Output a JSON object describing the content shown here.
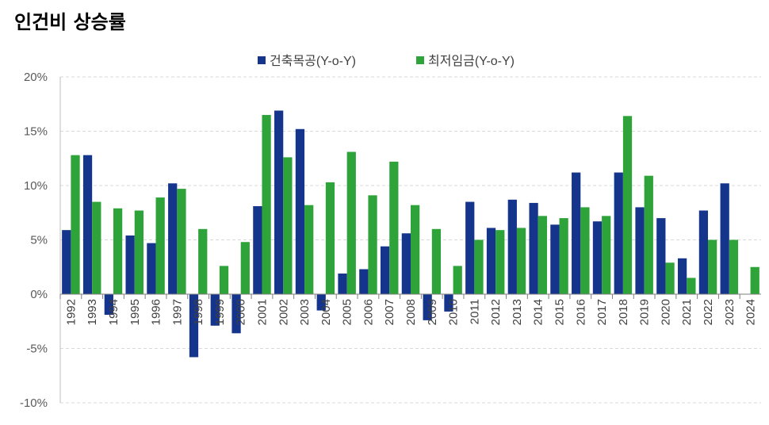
{
  "title": "인건비 상승률",
  "chart_data": {
    "type": "bar",
    "title": "인건비 상승률",
    "xlabel": "",
    "ylabel": "",
    "ylim": [
      -10,
      20
    ],
    "yticks": [
      -10,
      -5,
      0,
      5,
      10,
      15,
      20
    ],
    "ytick_labels": [
      "-10%",
      "-5%",
      "0%",
      "5%",
      "10%",
      "15%",
      "20%"
    ],
    "grid": true,
    "legend_position": "top-center",
    "categories": [
      "1992",
      "1993",
      "1994",
      "1995",
      "1996",
      "1997",
      "1998",
      "1999",
      "2000",
      "2001",
      "2002",
      "2003",
      "2004",
      "2005",
      "2006",
      "2007",
      "2008",
      "2009",
      "2010",
      "2011",
      "2012",
      "2013",
      "2014",
      "2015",
      "2016",
      "2017",
      "2018",
      "2019",
      "2020",
      "2021",
      "2022",
      "2023",
      "2024"
    ],
    "series": [
      {
        "name": "건축목공(Y-o-Y)",
        "color": "#15358C",
        "values": [
          5.9,
          12.8,
          -1.9,
          5.4,
          4.7,
          10.2,
          -5.8,
          -2.9,
          -3.6,
          8.1,
          16.9,
          15.2,
          -1.5,
          1.9,
          2.3,
          4.4,
          5.6,
          -2.4,
          -1.6,
          8.5,
          6.1,
          8.7,
          8.4,
          6.4,
          11.2,
          6.7,
          11.2,
          8.0,
          7.0,
          3.3,
          7.7,
          10.2,
          null
        ]
      },
      {
        "name": "최저임금(Y-o-Y)",
        "color": "#2EA33A",
        "values": [
          12.8,
          8.5,
          7.9,
          7.7,
          8.9,
          9.7,
          6.0,
          2.6,
          4.8,
          16.5,
          12.6,
          8.2,
          10.3,
          13.1,
          9.1,
          12.2,
          8.2,
          6.0,
          2.6,
          5.0,
          5.9,
          6.1,
          7.2,
          7.0,
          8.0,
          7.2,
          16.4,
          10.9,
          2.9,
          1.5,
          5.0,
          5.0,
          2.5
        ]
      }
    ]
  }
}
